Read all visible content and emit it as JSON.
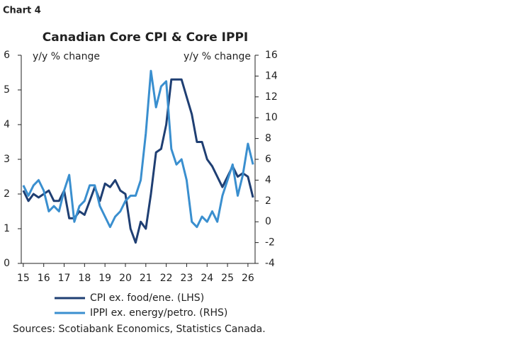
{
  "label": "Chart 4",
  "chart_data": {
    "type": "line",
    "title": "Canadian Core CPI & Core IPPI",
    "y_label": "y/y % change",
    "y2_label": "y/y % change",
    "x": [
      15,
      15.25,
      15.5,
      15.75,
      16,
      16.25,
      16.5,
      16.75,
      17,
      17.25,
      17.5,
      17.75,
      18,
      18.25,
      18.5,
      18.75,
      19,
      19.25,
      19.5,
      19.75,
      20,
      20.25,
      20.5,
      20.75,
      21,
      21.25,
      21.5,
      21.75,
      22,
      22.25,
      22.5,
      22.75,
      23,
      23.25,
      23.5,
      23.75,
      24,
      24.25,
      24.5,
      24.75,
      25,
      25.25,
      25.5,
      25.75,
      26,
      26.25
    ],
    "xlim": [
      14.9,
      26.35
    ],
    "xticks": [
      15,
      16,
      17,
      18,
      19,
      20,
      21,
      22,
      23,
      24,
      25,
      26
    ],
    "ylim": [
      0,
      6
    ],
    "yticks": [
      0,
      1,
      2,
      3,
      4,
      5,
      6
    ],
    "y2lim": [
      -4,
      16
    ],
    "y2ticks": [
      -4,
      -2,
      0,
      2,
      4,
      6,
      8,
      10,
      12,
      14,
      16
    ],
    "series": [
      {
        "name": "CPI ex. food/ene. (LHS)",
        "color": "#1f3f73",
        "values": [
          2.1,
          1.8,
          2.0,
          1.9,
          2.0,
          2.1,
          1.8,
          1.8,
          2.1,
          1.3,
          1.3,
          1.5,
          1.4,
          1.8,
          2.2,
          1.8,
          2.3,
          2.2,
          2.4,
          2.1,
          2.0,
          1.0,
          0.6,
          1.2,
          1.0,
          2.0,
          3.2,
          3.3,
          4.0,
          5.3,
          5.3,
          5.3,
          4.8,
          4.3,
          3.5,
          3.5,
          3.0,
          2.8,
          2.5,
          2.2,
          2.5,
          2.8,
          2.5,
          2.6,
          2.5,
          1.9
        ]
      },
      {
        "name": "IPPI ex. energy/petro. (RHS)",
        "color": "#3a8fcf",
        "axis": "y2",
        "values": [
          3.5,
          2.5,
          3.5,
          4.0,
          3.0,
          1.0,
          1.5,
          1.0,
          3.0,
          4.5,
          0.0,
          1.5,
          2.0,
          3.5,
          3.5,
          1.5,
          0.5,
          -0.5,
          0.5,
          1.0,
          2.0,
          2.5,
          2.5,
          4.0,
          8.5,
          14.5,
          11.0,
          13.0,
          13.5,
          7.0,
          5.5,
          6.0,
          4.0,
          0.0,
          -0.5,
          0.5,
          0.0,
          1.0,
          0.0,
          2.5,
          4.0,
          5.5,
          2.5,
          4.5,
          7.5,
          5.5
        ]
      }
    ],
    "source": "Sources: Scotiabank Economics, Statistics Canada."
  }
}
